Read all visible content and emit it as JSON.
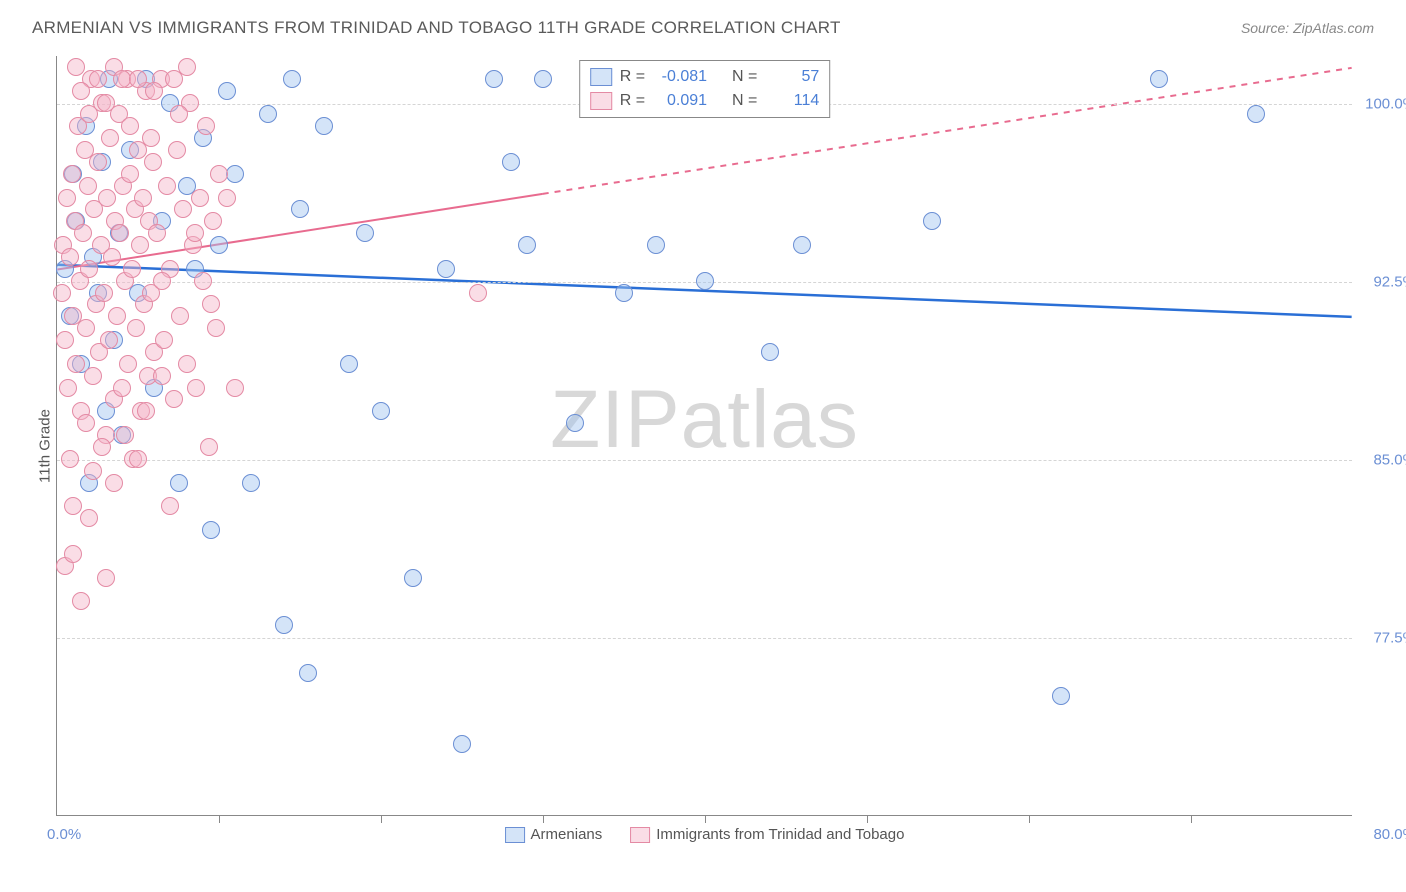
{
  "title": "ARMENIAN VS IMMIGRANTS FROM TRINIDAD AND TOBAGO 11TH GRADE CORRELATION CHART",
  "source": "Source: ZipAtlas.com",
  "ylabel": "11th Grade",
  "watermark": "ZIPatlas",
  "chart": {
    "type": "scatter",
    "xlim": [
      0,
      80
    ],
    "ylim": [
      70,
      102
    ],
    "xlim_label_left": "0.0%",
    "xlim_label_right": "80.0%",
    "yticks": [
      77.5,
      85.0,
      92.5,
      100.0
    ],
    "ytick_labels": [
      "77.5%",
      "85.0%",
      "92.5%",
      "100.0%"
    ],
    "xtick_positions": [
      10,
      20,
      30,
      40,
      50,
      60,
      70
    ],
    "background_color": "#ffffff",
    "grid_color": "#d5d5d5",
    "marker_radius": 9,
    "series": [
      {
        "name": "Armenians",
        "color_fill": "rgba(160,195,240,0.45)",
        "color_stroke": "#6b8fd4",
        "line_color": "#2a6fd6",
        "line_width": 2.5,
        "R": -0.081,
        "N": 57,
        "trend_start": [
          0,
          93.2
        ],
        "trend_end": [
          80,
          91.0
        ],
        "trend_dash_from_x": null,
        "points": [
          [
            0.5,
            93
          ],
          [
            0.8,
            91
          ],
          [
            1.0,
            97
          ],
          [
            1.2,
            95
          ],
          [
            1.5,
            89
          ],
          [
            1.8,
            99
          ],
          [
            2.0,
            84
          ],
          [
            2.2,
            93.5
          ],
          [
            2.5,
            92
          ],
          [
            2.8,
            97.5
          ],
          [
            3.0,
            87
          ],
          [
            3.2,
            101
          ],
          [
            3.5,
            90
          ],
          [
            3.8,
            94.5
          ],
          [
            4.0,
            86
          ],
          [
            4.5,
            98
          ],
          [
            5.0,
            92
          ],
          [
            5.5,
            101
          ],
          [
            6.0,
            88
          ],
          [
            6.5,
            95
          ],
          [
            7.0,
            100
          ],
          [
            7.5,
            84
          ],
          [
            8.0,
            96.5
          ],
          [
            8.5,
            93
          ],
          [
            9.0,
            98.5
          ],
          [
            9.5,
            82
          ],
          [
            10.0,
            94
          ],
          [
            10.5,
            100.5
          ],
          [
            11.0,
            97
          ],
          [
            12.0,
            84
          ],
          [
            13.0,
            99.5
          ],
          [
            14.0,
            78
          ],
          [
            14.5,
            101
          ],
          [
            15.0,
            95.5
          ],
          [
            15.5,
            76
          ],
          [
            16.5,
            99
          ],
          [
            18.0,
            89
          ],
          [
            19.0,
            94.5
          ],
          [
            20.0,
            87
          ],
          [
            22.0,
            80
          ],
          [
            24.0,
            93
          ],
          [
            25.0,
            73
          ],
          [
            27.0,
            101
          ],
          [
            28.0,
            97.5
          ],
          [
            29.0,
            94
          ],
          [
            30.0,
            101
          ],
          [
            32.0,
            86.5
          ],
          [
            35.0,
            92
          ],
          [
            37.0,
            94
          ],
          [
            40.0,
            92.5
          ],
          [
            42.0,
            101
          ],
          [
            44.0,
            89.5
          ],
          [
            46.0,
            94
          ],
          [
            54.0,
            95
          ],
          [
            62.0,
            75
          ],
          [
            68.0,
            101
          ],
          [
            74.0,
            99.5
          ]
        ]
      },
      {
        "name": "Immigrants from Trinidad and Tobago",
        "color_fill": "rgba(245,180,200,0.45)",
        "color_stroke": "#e48aa4",
        "line_color": "#e86b8f",
        "line_width": 2,
        "R": 0.091,
        "N": 114,
        "trend_start": [
          0,
          93.0
        ],
        "trend_end": [
          80,
          101.5
        ],
        "trend_dash_from_x": 30,
        "points": [
          [
            0.3,
            92
          ],
          [
            0.4,
            94
          ],
          [
            0.5,
            90
          ],
          [
            0.6,
            96
          ],
          [
            0.7,
            88
          ],
          [
            0.8,
            93.5
          ],
          [
            0.9,
            97
          ],
          [
            1.0,
            91
          ],
          [
            1.1,
            95
          ],
          [
            1.2,
            89
          ],
          [
            1.3,
            99
          ],
          [
            1.4,
            92.5
          ],
          [
            1.5,
            87
          ],
          [
            1.6,
            94.5
          ],
          [
            1.7,
            98
          ],
          [
            1.8,
            90.5
          ],
          [
            1.9,
            96.5
          ],
          [
            2.0,
            93
          ],
          [
            2.1,
            101
          ],
          [
            2.2,
            88.5
          ],
          [
            2.3,
            95.5
          ],
          [
            2.4,
            91.5
          ],
          [
            2.5,
            97.5
          ],
          [
            2.6,
            89.5
          ],
          [
            2.7,
            94
          ],
          [
            2.8,
            100
          ],
          [
            2.9,
            92
          ],
          [
            3.0,
            86
          ],
          [
            3.1,
            96
          ],
          [
            3.2,
            90
          ],
          [
            3.3,
            98.5
          ],
          [
            3.4,
            93.5
          ],
          [
            3.5,
            87.5
          ],
          [
            3.6,
            95
          ],
          [
            3.7,
            91
          ],
          [
            3.8,
            99.5
          ],
          [
            3.9,
            94.5
          ],
          [
            4.0,
            88
          ],
          [
            4.1,
            96.5
          ],
          [
            4.2,
            92.5
          ],
          [
            4.3,
            101
          ],
          [
            4.4,
            89
          ],
          [
            4.5,
            97
          ],
          [
            4.6,
            93
          ],
          [
            4.7,
            85
          ],
          [
            4.8,
            95.5
          ],
          [
            4.9,
            90.5
          ],
          [
            5.0,
            98
          ],
          [
            5.1,
            94
          ],
          [
            5.2,
            87
          ],
          [
            5.3,
            96
          ],
          [
            5.4,
            91.5
          ],
          [
            5.5,
            100.5
          ],
          [
            5.6,
            88.5
          ],
          [
            5.7,
            95
          ],
          [
            5.8,
            92
          ],
          [
            5.9,
            97.5
          ],
          [
            6.0,
            89.5
          ],
          [
            6.2,
            94.5
          ],
          [
            6.4,
            101
          ],
          [
            6.6,
            90
          ],
          [
            6.8,
            96.5
          ],
          [
            7.0,
            93
          ],
          [
            7.2,
            87.5
          ],
          [
            7.4,
            98
          ],
          [
            7.6,
            91
          ],
          [
            7.8,
            95.5
          ],
          [
            8.0,
            89
          ],
          [
            8.2,
            100
          ],
          [
            8.4,
            94
          ],
          [
            8.6,
            88
          ],
          [
            8.8,
            96
          ],
          [
            9.0,
            92.5
          ],
          [
            9.2,
            99
          ],
          [
            9.4,
            85.5
          ],
          [
            9.6,
            95
          ],
          [
            9.8,
            90.5
          ],
          [
            10.0,
            97
          ],
          [
            0.5,
            80.5
          ],
          [
            1.0,
            81
          ],
          [
            1.2,
            101.5
          ],
          [
            1.5,
            100.5
          ],
          [
            2.0,
            99.5
          ],
          [
            2.5,
            101
          ],
          [
            3.0,
            100
          ],
          [
            3.5,
            101.5
          ],
          [
            1.8,
            86.5
          ],
          [
            2.2,
            84.5
          ],
          [
            4.0,
            101
          ],
          [
            4.5,
            99
          ],
          [
            5.0,
            101
          ],
          [
            5.5,
            87
          ],
          [
            6.0,
            100.5
          ],
          [
            6.5,
            88.5
          ],
          [
            7.0,
            83
          ],
          [
            7.5,
            99.5
          ],
          [
            8.0,
            101.5
          ],
          [
            3.0,
            80
          ],
          [
            26.0,
            92
          ],
          [
            1.5,
            79
          ],
          [
            2.0,
            82.5
          ],
          [
            0.8,
            85
          ],
          [
            1.0,
            83
          ],
          [
            2.8,
            85.5
          ],
          [
            3.5,
            84
          ],
          [
            4.2,
            86
          ],
          [
            5.0,
            85
          ],
          [
            5.8,
            98.5
          ],
          [
            6.5,
            92.5
          ],
          [
            7.2,
            101
          ],
          [
            8.5,
            94.5
          ],
          [
            9.5,
            91.5
          ],
          [
            10.5,
            96
          ],
          [
            11.0,
            88
          ]
        ]
      }
    ]
  },
  "legend_center": {
    "R_label": "R =",
    "N_label": "N ="
  },
  "legend_bottom": {
    "s1": "Armenians",
    "s2": "Immigrants from Trinidad and Tobago"
  }
}
